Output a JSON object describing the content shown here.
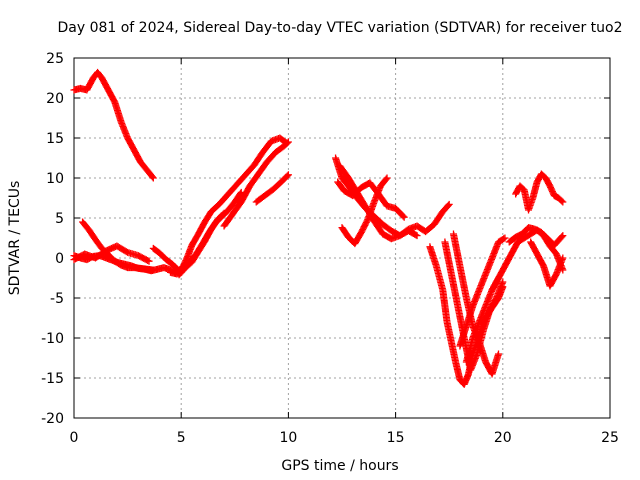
{
  "chart_data": {
    "type": "scatter",
    "title": "Day 081 of 2024, Sidereal Day-to-day VTEC variation (SDTVAR) for receiver tuo2",
    "xlabel": "GPS time / hours",
    "ylabel": "SDTVAR / TECUs",
    "xlim": [
      0,
      25
    ],
    "ylim": [
      -20,
      25
    ],
    "xticks": [
      0,
      5,
      10,
      15,
      20,
      25
    ],
    "yticks": [
      -20,
      -15,
      -10,
      -5,
      0,
      5,
      10,
      15,
      20,
      25
    ],
    "grid": true,
    "marker": "+",
    "color": "#ff0000",
    "series": [
      {
        "x": [
          0.0,
          0.3,
          0.6,
          0.9,
          1.1,
          1.3,
          1.6,
          1.9,
          2.2,
          2.5,
          2.8,
          3.1,
          3.4,
          3.7
        ],
        "y": [
          21.0,
          21.2,
          21.0,
          22.5,
          23.2,
          22.5,
          21.0,
          19.5,
          17.0,
          15.0,
          13.5,
          12.0,
          11.0,
          10.0
        ]
      },
      {
        "x": [
          0.0,
          0.3,
          0.6,
          0.9,
          1.2,
          1.5,
          1.8,
          2.1,
          2.4,
          2.7,
          3.0,
          3.3,
          3.6,
          3.9,
          4.2,
          4.5,
          4.8,
          5.0
        ],
        "y": [
          0.3,
          0.0,
          -0.2,
          0.2,
          0.3,
          0.0,
          -0.3,
          -0.6,
          -0.8,
          -1.0,
          -1.3,
          -1.4,
          -1.6,
          -1.4,
          -1.2,
          -1.5,
          -1.7,
          -1.8
        ]
      },
      {
        "x": [
          0.4,
          0.7,
          1.0,
          1.3,
          1.6,
          1.9,
          2.2,
          2.5,
          2.8,
          3.1,
          3.4,
          3.7
        ],
        "y": [
          4.5,
          3.5,
          2.3,
          1.2,
          0.4,
          -0.4,
          -0.9,
          -1.2,
          -1.2,
          -1.3,
          -1.4,
          -1.5
        ]
      },
      {
        "x": [
          0.0,
          0.5,
          1.0,
          1.5,
          2.0,
          2.5,
          3.0,
          3.5
        ],
        "y": [
          -0.2,
          0.5,
          0.0,
          0.9,
          1.5,
          0.7,
          0.3,
          -0.4
        ]
      },
      {
        "x": [
          3.7,
          4.0,
          4.3,
          4.6,
          4.9,
          5.1,
          5.3,
          5.5,
          5.8,
          6.1,
          6.4,
          6.8,
          7.2,
          7.6,
          8.0,
          8.4,
          8.8,
          9.2,
          9.6,
          9.9
        ],
        "y": [
          1.2,
          0.6,
          -0.2,
          -0.8,
          -1.6,
          -1.0,
          0.2,
          1.6,
          3.0,
          4.5,
          5.8,
          6.8,
          8.0,
          9.2,
          10.4,
          11.6,
          13.2,
          14.6,
          15.0,
          14.4
        ]
      },
      {
        "x": [
          4.5,
          4.8,
          5.1,
          5.4,
          5.7,
          6.0,
          6.3,
          6.6,
          6.9,
          7.2,
          7.5,
          7.8
        ],
        "y": [
          -1.8,
          -2.0,
          -1.5,
          -0.5,
          0.5,
          1.8,
          3.2,
          4.4,
          5.2,
          6.0,
          7.0,
          8.2
        ]
      },
      {
        "x": [
          4.9,
          5.2,
          5.5,
          5.8,
          6.1,
          6.4,
          6.7,
          7.0
        ],
        "y": [
          -2.1,
          -1.2,
          -0.5,
          0.8,
          2.1,
          3.6,
          4.8,
          5.6
        ]
      },
      {
        "x": [
          7.0,
          7.4,
          7.8,
          8.2,
          8.6,
          9.0,
          9.4,
          9.8,
          10.0
        ],
        "y": [
          4.0,
          5.5,
          7.0,
          9.0,
          10.5,
          12.0,
          13.2,
          14.0,
          14.5
        ]
      },
      {
        "x": [
          8.5,
          8.9,
          9.3,
          9.7,
          10.0
        ],
        "y": [
          7.0,
          7.8,
          8.6,
          9.6,
          10.4
        ]
      },
      {
        "x": [
          12.2,
          12.5,
          12.8,
          13.2,
          13.6,
          14.0,
          14.4,
          14.8,
          15.2,
          15.6,
          16.0,
          16.4,
          16.8,
          17.2,
          17.5
        ],
        "y": [
          12.5,
          10.0,
          9.0,
          7.5,
          6.2,
          5.2,
          4.2,
          3.4,
          2.8,
          3.6,
          4.0,
          3.3,
          4.2,
          5.8,
          6.7
        ]
      },
      {
        "x": [
          12.3,
          12.6,
          13.0,
          13.4,
          13.8,
          14.2,
          14.6,
          15.0,
          15.4
        ],
        "y": [
          9.5,
          8.4,
          7.8,
          8.8,
          9.4,
          8.0,
          6.5,
          6.2,
          5.1
        ]
      },
      {
        "x": [
          12.4,
          12.8,
          13.2,
          13.6,
          14.0,
          14.4,
          14.8,
          15.2,
          15.6,
          16.0
        ],
        "y": [
          11.5,
          10.0,
          8.2,
          6.4,
          4.6,
          3.0,
          2.4,
          2.8,
          3.4,
          2.8
        ]
      },
      {
        "x": [
          12.5,
          12.8,
          13.1,
          13.4,
          13.7,
          14.0,
          14.3,
          14.6
        ],
        "y": [
          3.8,
          2.6,
          1.8,
          3.2,
          4.8,
          7.0,
          9.0,
          10.0
        ]
      },
      {
        "x": [
          16.6,
          16.9,
          17.2,
          17.4,
          17.6,
          17.8,
          18.0,
          18.2,
          18.4,
          18.6,
          18.9,
          19.2,
          19.5,
          19.8,
          20.0
        ],
        "y": [
          1.4,
          -1.0,
          -4.0,
          -8.0,
          -10.5,
          -13.0,
          -15.2,
          -15.8,
          -14.5,
          -12.0,
          -9.5,
          -7.5,
          -6.2,
          -5.0,
          -3.6
        ]
      },
      {
        "x": [
          17.3,
          17.6,
          17.9,
          18.2,
          18.5,
          18.8,
          19.1,
          19.4,
          19.7,
          20.0
        ],
        "y": [
          2.0,
          -2.0,
          -6.0,
          -10.0,
          -14.0,
          -12.0,
          -9.0,
          -6.5,
          -5.0,
          -3.0
        ]
      },
      {
        "x": [
          17.7,
          18.0,
          18.3,
          18.6,
          18.9,
          19.2,
          19.5,
          19.8
        ],
        "y": [
          3.0,
          -1.0,
          -5.0,
          -8.5,
          -10.5,
          -13.0,
          -14.5,
          -12.0
        ]
      },
      {
        "x": [
          18.0,
          18.3,
          18.6,
          18.9,
          19.2,
          19.5,
          19.8,
          20.1
        ],
        "y": [
          -11.0,
          -8.5,
          -6.0,
          -4.0,
          -2.0,
          0.0,
          2.0,
          2.5
        ]
      },
      {
        "x": [
          18.3,
          18.6,
          18.9,
          19.2,
          19.5,
          19.8
        ],
        "y": [
          -13.0,
          -10.0,
          -8.0,
          -6.0,
          -4.0,
          -2.5
        ]
      },
      {
        "x": [
          19.5,
          19.8,
          20.1,
          20.4,
          20.7,
          21.0,
          21.3,
          21.6,
          21.9,
          22.2,
          22.5,
          22.8
        ],
        "y": [
          -4.0,
          -2.5,
          -1.0,
          0.5,
          2.0,
          2.5,
          3.0,
          3.5,
          2.8,
          1.5,
          0.5,
          -1.5
        ]
      },
      {
        "x": [
          20.3,
          20.6,
          20.9,
          21.2,
          21.5,
          21.8,
          22.1,
          22.4,
          22.8
        ],
        "y": [
          2.0,
          2.6,
          3.0,
          3.8,
          3.6,
          3.2,
          2.4,
          1.6,
          2.8
        ]
      },
      {
        "x": [
          20.6,
          20.8,
          21.0,
          21.2,
          21.4,
          21.6,
          21.8,
          22.0,
          22.2,
          22.4,
          22.6,
          22.8
        ],
        "y": [
          8.0,
          9.0,
          8.5,
          6.0,
          7.5,
          9.5,
          10.5,
          10.0,
          9.0,
          7.8,
          7.5,
          7.0
        ]
      },
      {
        "x": [
          21.3,
          21.6,
          21.9,
          22.2,
          22.5,
          22.8
        ],
        "y": [
          2.0,
          0.5,
          -1.0,
          -3.5,
          -2.0,
          0.0
        ]
      }
    ]
  }
}
